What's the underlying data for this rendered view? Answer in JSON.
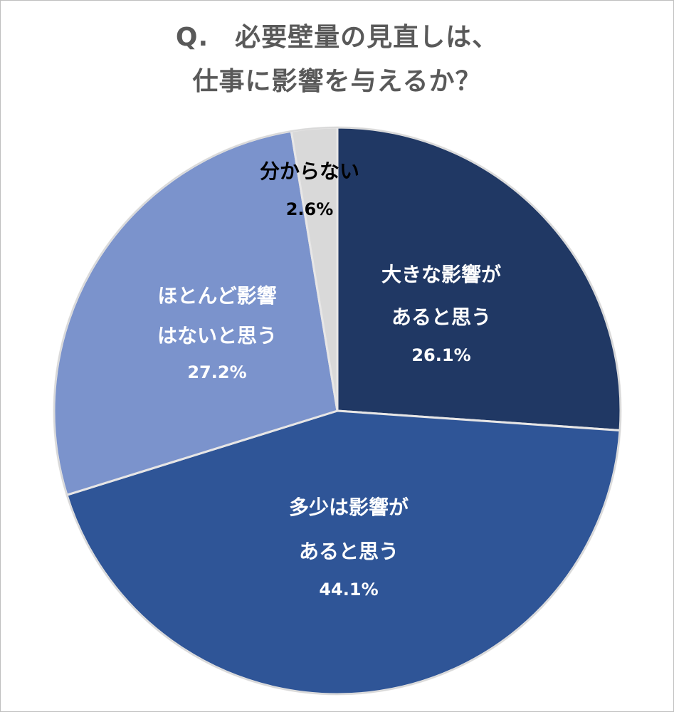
{
  "chart_data": {
    "type": "pie",
    "title": [
      "Q.　必要壁量の見直しは、",
      "仕事に影響を与えるか？"
    ],
    "slices": [
      {
        "label": [
          "大きな影響が",
          "あると思う"
        ],
        "value": 26.1,
        "display": "26.1%",
        "color": "#203864",
        "text_color": "#ffffff"
      },
      {
        "label": [
          "多少は影響が",
          "あると思う"
        ],
        "value": 44.1,
        "display": "44.1%",
        "color": "#2f5597",
        "text_color": "#ffffff"
      },
      {
        "label": [
          "ほとんど影響",
          "はないと思う"
        ],
        "value": 27.2,
        "display": "27.2%",
        "color": "#7b93cc",
        "text_color": "#ffffff"
      },
      {
        "label": [
          "分からない"
        ],
        "value": 2.6,
        "display": "2.6%",
        "color": "#d9d9d9",
        "text_color": "#000000"
      }
    ],
    "start_angle": "12 o'clock",
    "direction": "clockwise",
    "legend": "none"
  }
}
